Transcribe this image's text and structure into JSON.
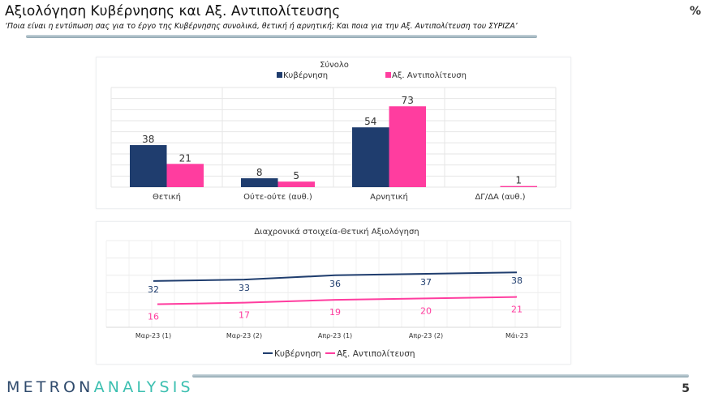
{
  "header": {
    "title": "Αξιολόγηση Κυβέρνησης και Αξ. Αντιπολίτευσης",
    "subtitle": "‘Ποια είναι η εντύπωση σας για το έργο της Κυβέρνησης συνολικά, θετική ή αρνητική; Και ποια για την Αξ. Αντιπολίτευση του ΣΥΡΙΖΑ’",
    "unit": "%"
  },
  "footer": {
    "logo_part1": "METRON",
    "logo_part2": "ANALYSIS",
    "page_number": "5"
  },
  "colors": {
    "government": "#1f3d6e",
    "opposition": "#ff3d9f"
  },
  "chart_data": [
    {
      "type": "bar",
      "title": "Σύνολο",
      "categories": [
        "Θετική",
        "Ούτε-ούτε (αυθ.)",
        "Αρνητική",
        "ΔΓ/ΔΑ (αυθ.)"
      ],
      "series": [
        {
          "name": "Κυβέρνηση",
          "values": [
            38,
            8,
            54,
            null
          ]
        },
        {
          "name": "Αξ. Αντιπολίτευση",
          "values": [
            21,
            5,
            73,
            1
          ]
        }
      ],
      "ylim": [
        0,
        90
      ],
      "grid": true,
      "legend": "top"
    },
    {
      "type": "line",
      "title": "Διαχρονικά στοιχεία-Θετική Αξιολόγηση",
      "categories": [
        "Μαρ-23 (1)",
        "Μαρ-23 (2)",
        "Απρ-23 (1)",
        "Απρ-23 (2)",
        "Μάι-23"
      ],
      "series": [
        {
          "name": "Κυβέρνηση",
          "values": [
            32,
            33,
            36,
            37,
            38
          ]
        },
        {
          "name": "Αξ. Αντιπολίτευση",
          "values": [
            16,
            17,
            19,
            20,
            21
          ]
        }
      ],
      "ylim": [
        0,
        60
      ],
      "grid": true,
      "legend": "bottom"
    }
  ]
}
